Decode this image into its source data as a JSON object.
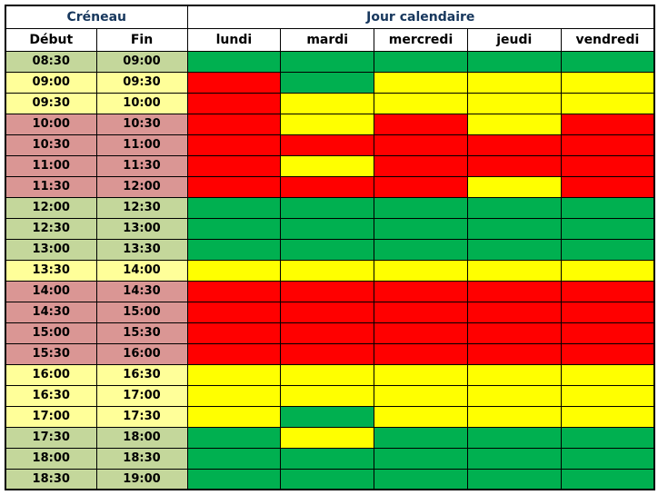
{
  "chart_data": {
    "type": "heatmap",
    "header_groups": [
      {
        "label": "Créneau",
        "span": 2
      },
      {
        "label": "Jour calendaire",
        "span": 5
      }
    ],
    "columns": [
      "Début",
      "Fin",
      "lundi",
      "mardi",
      "mercredi",
      "jeudi",
      "vendredi"
    ],
    "status_colors": {
      "green": "#00b050",
      "yellow": "#ffff00",
      "red": "#ff0000"
    },
    "time_tint_colors": {
      "green": "#c4d79b",
      "yellow": "#ffff99",
      "red": "#da9694"
    },
    "colors": {
      "header_text": "#17375d",
      "column_header_text": "#000000",
      "time_text": "#000000",
      "border": "#000000",
      "header_bg": "#ffffff"
    },
    "rows": [
      {
        "debut": "08:30",
        "fin": "09:00",
        "tint": "green",
        "days": [
          "green",
          "green",
          "green",
          "green",
          "green"
        ]
      },
      {
        "debut": "09:00",
        "fin": "09:30",
        "tint": "yellow",
        "days": [
          "red",
          "green",
          "yellow",
          "yellow",
          "yellow"
        ]
      },
      {
        "debut": "09:30",
        "fin": "10:00",
        "tint": "yellow",
        "days": [
          "red",
          "yellow",
          "yellow",
          "yellow",
          "yellow"
        ]
      },
      {
        "debut": "10:00",
        "fin": "10:30",
        "tint": "red",
        "days": [
          "red",
          "yellow",
          "red",
          "yellow",
          "red"
        ]
      },
      {
        "debut": "10:30",
        "fin": "11:00",
        "tint": "red",
        "days": [
          "red",
          "red",
          "red",
          "red",
          "red"
        ]
      },
      {
        "debut": "11:00",
        "fin": "11:30",
        "tint": "red",
        "days": [
          "red",
          "yellow",
          "red",
          "red",
          "red"
        ]
      },
      {
        "debut": "11:30",
        "fin": "12:00",
        "tint": "red",
        "days": [
          "red",
          "red",
          "red",
          "yellow",
          "red"
        ]
      },
      {
        "debut": "12:00",
        "fin": "12:30",
        "tint": "green",
        "days": [
          "green",
          "green",
          "green",
          "green",
          "green"
        ]
      },
      {
        "debut": "12:30",
        "fin": "13:00",
        "tint": "green",
        "days": [
          "green",
          "green",
          "green",
          "green",
          "green"
        ]
      },
      {
        "debut": "13:00",
        "fin": "13:30",
        "tint": "green",
        "days": [
          "green",
          "green",
          "green",
          "green",
          "green"
        ]
      },
      {
        "debut": "13:30",
        "fin": "14:00",
        "tint": "yellow",
        "days": [
          "yellow",
          "yellow",
          "yellow",
          "yellow",
          "yellow"
        ]
      },
      {
        "debut": "14:00",
        "fin": "14:30",
        "tint": "red",
        "days": [
          "red",
          "red",
          "red",
          "red",
          "red"
        ]
      },
      {
        "debut": "14:30",
        "fin": "15:00",
        "tint": "red",
        "days": [
          "red",
          "red",
          "red",
          "red",
          "red"
        ]
      },
      {
        "debut": "15:00",
        "fin": "15:30",
        "tint": "red",
        "days": [
          "red",
          "red",
          "red",
          "red",
          "red"
        ]
      },
      {
        "debut": "15:30",
        "fin": "16:00",
        "tint": "red",
        "days": [
          "red",
          "red",
          "red",
          "red",
          "red"
        ]
      },
      {
        "debut": "16:00",
        "fin": "16:30",
        "tint": "yellow",
        "days": [
          "yellow",
          "yellow",
          "yellow",
          "yellow",
          "yellow"
        ]
      },
      {
        "debut": "16:30",
        "fin": "17:00",
        "tint": "yellow",
        "days": [
          "yellow",
          "yellow",
          "yellow",
          "yellow",
          "yellow"
        ]
      },
      {
        "debut": "17:00",
        "fin": "17:30",
        "tint": "yellow",
        "days": [
          "yellow",
          "green",
          "yellow",
          "yellow",
          "yellow"
        ]
      },
      {
        "debut": "17:30",
        "fin": "18:00",
        "tint": "green",
        "days": [
          "green",
          "yellow",
          "green",
          "green",
          "green"
        ]
      },
      {
        "debut": "18:00",
        "fin": "18:30",
        "tint": "green",
        "days": [
          "green",
          "green",
          "green",
          "green",
          "green"
        ]
      },
      {
        "debut": "18:30",
        "fin": "19:00",
        "tint": "green",
        "days": [
          "green",
          "green",
          "green",
          "green",
          "green"
        ]
      }
    ]
  }
}
